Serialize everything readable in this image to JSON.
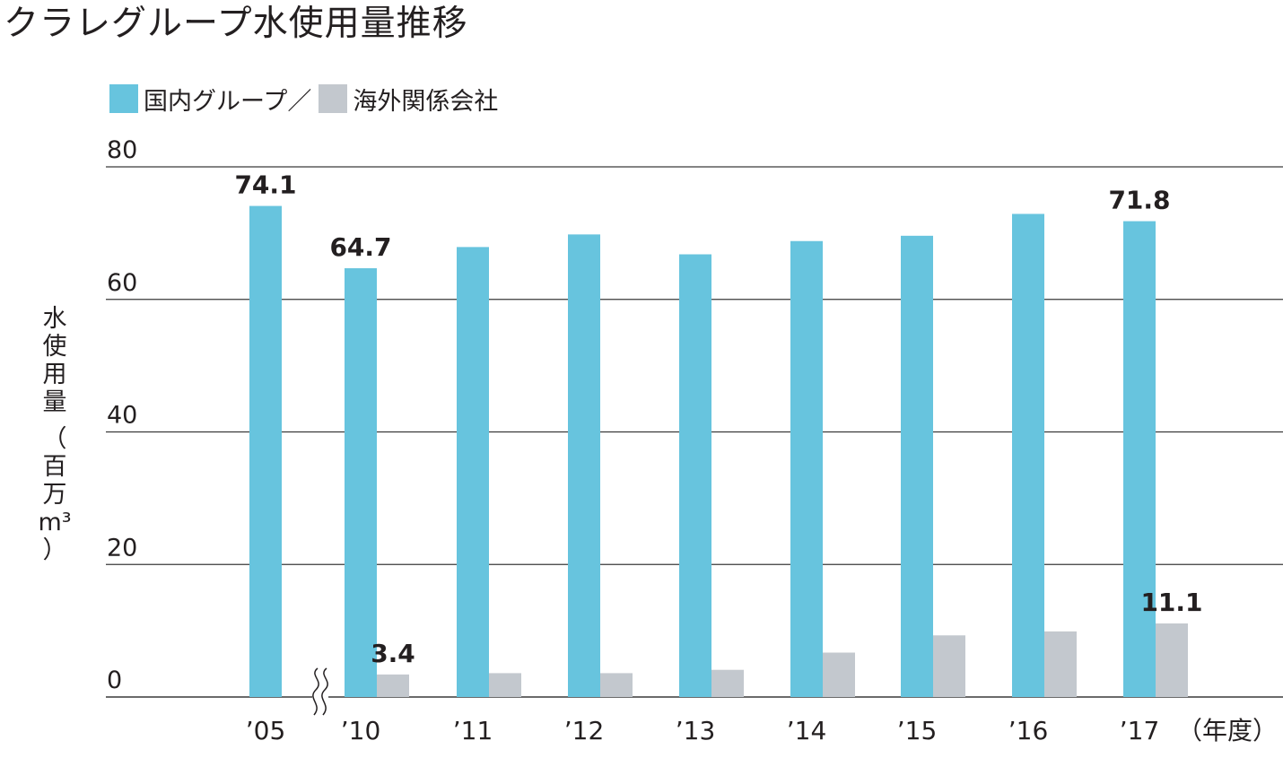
{
  "chart_data": {
    "type": "bar",
    "title": "クラレグループ水使用量推移",
    "legend_separator": "／",
    "ylabel_lines": [
      "水",
      "使",
      "用",
      "量",
      "（",
      "百",
      "万",
      "m³",
      "）"
    ],
    "xunit": "（年度）",
    "categories": [
      "’05",
      "’10",
      "’11",
      "’12",
      "’13",
      "’14",
      "’15",
      "’16",
      "’17"
    ],
    "series": [
      {
        "name": "国内グループ",
        "color": "#67c4de",
        "values": [
          74.1,
          64.7,
          67.9,
          69.8,
          66.8,
          68.8,
          69.6,
          72.9,
          71.8
        ],
        "labels": [
          "74.1",
          "64.7",
          null,
          null,
          null,
          null,
          null,
          null,
          "71.8"
        ]
      },
      {
        "name": "海外関係会社",
        "color": "#c3c8ce",
        "values": [
          null,
          3.4,
          3.6,
          3.6,
          4.1,
          6.7,
          9.3,
          9.9,
          11.1
        ],
        "labels": [
          null,
          "3.4",
          null,
          null,
          null,
          null,
          null,
          null,
          "11.1"
        ]
      }
    ],
    "ylim": [
      0,
      80
    ],
    "yticks": [
      0,
      20,
      40,
      60,
      80
    ],
    "grid": true,
    "axis_break": "between ’05 and ’10",
    "legend_position": "top-left"
  }
}
